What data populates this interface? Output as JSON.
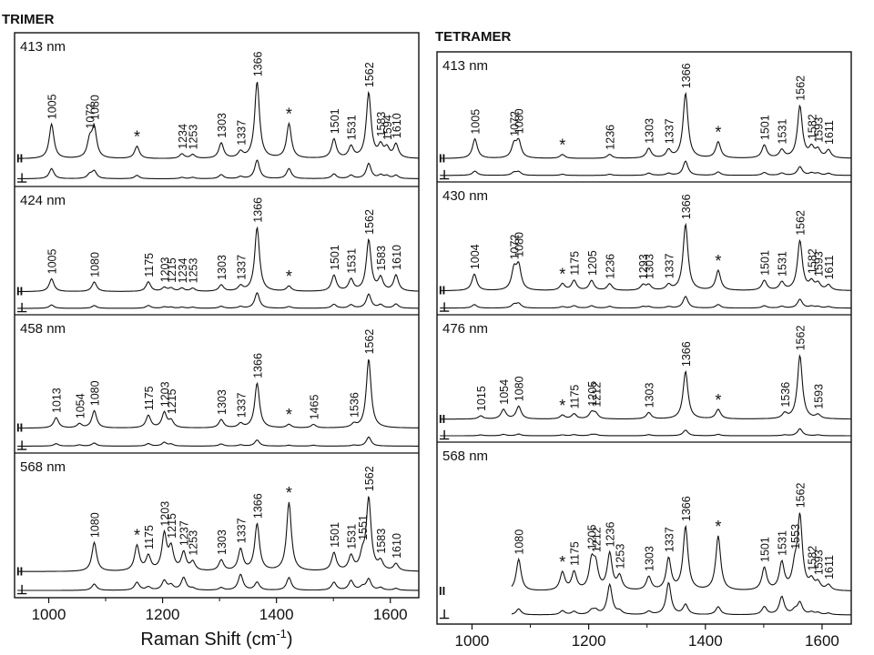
{
  "chart_data": [
    {
      "type": "line",
      "title": "TRIMER",
      "xlabel": "Raman Shift (cm-1)",
      "xlabel_main": "Raman Shift (cm",
      "xlabel_sup": "-1",
      "xlabel_close": ")",
      "xlim": [
        940,
        1650
      ],
      "xticks": [
        1000,
        1200,
        1400,
        1600
      ],
      "polarization_labels": [
        "II",
        "⊥"
      ],
      "star": "*",
      "series": [
        {
          "name": "413 nm",
          "bands": [
            {
              "x": 1005,
              "label": "1005",
              "par": 0.45,
              "perp": 0.3
            },
            {
              "x": 1072,
              "label": "1072",
              "par": 0.22,
              "perp": 0.12
            },
            {
              "x": 1080,
              "label": "1080",
              "par": 0.38,
              "perp": 0.22
            },
            {
              "x": 1155,
              "label": "*",
              "par": 0.16,
              "perp": 0.1
            },
            {
              "x": 1234,
              "label": "1234",
              "par": 0.06,
              "perp": 0.04
            },
            {
              "x": 1253,
              "label": "1253",
              "par": 0.05,
              "perp": 0.04
            },
            {
              "x": 1303,
              "label": "1303",
              "par": 0.2,
              "perp": 0.12
            },
            {
              "x": 1337,
              "label": "1337",
              "par": 0.08,
              "perp": 0.06
            },
            {
              "x": 1366,
              "label": "1366",
              "par": 1.0,
              "perp": 0.55
            },
            {
              "x": 1422,
              "label": "*",
              "par": 0.45,
              "perp": 0.3
            },
            {
              "x": 1501,
              "label": "1501",
              "par": 0.25,
              "perp": 0.14
            },
            {
              "x": 1531,
              "label": "1531",
              "par": 0.15,
              "perp": 0.1
            },
            {
              "x": 1562,
              "label": "1562",
              "par": 0.85,
              "perp": 0.45
            },
            {
              "x": 1583,
              "label": "1583",
              "par": 0.15,
              "perp": 0.1
            },
            {
              "x": 1594,
              "label": "1594",
              "par": 0.12,
              "perp": 0.08
            },
            {
              "x": 1610,
              "label": "1610",
              "par": 0.18,
              "perp": 0.1
            }
          ]
        },
        {
          "name": "424 nm",
          "bands": [
            {
              "x": 1005,
              "label": "1005",
              "par": 0.2,
              "perp": 0.12
            },
            {
              "x": 1080,
              "label": "1080",
              "par": 0.15,
              "perp": 0.1
            },
            {
              "x": 1175,
              "label": "1175",
              "par": 0.15,
              "perp": 0.1
            },
            {
              "x": 1203,
              "label": "1203",
              "par": 0.06,
              "perp": 0.05
            },
            {
              "x": 1215,
              "label": "1215",
              "par": 0.05,
              "perp": 0.04
            },
            {
              "x": 1234,
              "label": "1234",
              "par": 0.05,
              "perp": 0.04
            },
            {
              "x": 1253,
              "label": "1253",
              "par": 0.05,
              "perp": 0.04
            },
            {
              "x": 1303,
              "label": "1303",
              "par": 0.1,
              "perp": 0.07
            },
            {
              "x": 1337,
              "label": "1337",
              "par": 0.08,
              "perp": 0.06
            },
            {
              "x": 1366,
              "label": "1366",
              "par": 1.0,
              "perp": 0.55
            },
            {
              "x": 1422,
              "label": "*",
              "par": 0.08,
              "perp": 0.06
            },
            {
              "x": 1501,
              "label": "1501",
              "par": 0.25,
              "perp": 0.14
            },
            {
              "x": 1531,
              "label": "1531",
              "par": 0.18,
              "perp": 0.12
            },
            {
              "x": 1562,
              "label": "1562",
              "par": 0.8,
              "perp": 0.5
            },
            {
              "x": 1583,
              "label": "1583",
              "par": 0.2,
              "perp": 0.12
            },
            {
              "x": 1610,
              "label": "1610",
              "par": 0.25,
              "perp": 0.15
            }
          ]
        },
        {
          "name": "458 nm",
          "bands": [
            {
              "x": 1013,
              "label": "1013",
              "par": 0.15,
              "perp": 0.08
            },
            {
              "x": 1054,
              "label": "1054",
              "par": 0.06,
              "perp": 0.04
            },
            {
              "x": 1080,
              "label": "1080",
              "par": 0.25,
              "perp": 0.1
            },
            {
              "x": 1175,
              "label": "1175",
              "par": 0.18,
              "perp": 0.08
            },
            {
              "x": 1203,
              "label": "1203",
              "par": 0.22,
              "perp": 0.12
            },
            {
              "x": 1215,
              "label": "1215",
              "par": 0.1,
              "perp": 0.06
            },
            {
              "x": 1303,
              "label": "1303",
              "par": 0.12,
              "perp": 0.07
            },
            {
              "x": 1337,
              "label": "1337",
              "par": 0.06,
              "perp": 0.04
            },
            {
              "x": 1366,
              "label": "1366",
              "par": 0.65,
              "perp": 0.2
            },
            {
              "x": 1422,
              "label": "*",
              "par": 0.05,
              "perp": 0.03
            },
            {
              "x": 1465,
              "label": "1465",
              "par": 0.05,
              "perp": 0.03
            },
            {
              "x": 1536,
              "label": "1536",
              "par": 0.05,
              "perp": 0.03
            },
            {
              "x": 1562,
              "label": "1562",
              "par": 1.0,
              "perp": 0.3
            }
          ]
        },
        {
          "name": "568 nm",
          "bands": [
            {
              "x": 1080,
              "label": "1080",
              "par": 0.4,
              "perp": 0.2
            },
            {
              "x": 1155,
              "label": "*",
              "par": 0.35,
              "perp": 0.25
            },
            {
              "x": 1175,
              "label": "1175",
              "par": 0.2,
              "perp": 0.1
            },
            {
              "x": 1203,
              "label": "1203",
              "par": 0.5,
              "perp": 0.3
            },
            {
              "x": 1215,
              "label": "1215",
              "par": 0.3,
              "perp": 0.15
            },
            {
              "x": 1237,
              "label": "1237",
              "par": 0.25,
              "perp": 0.4
            },
            {
              "x": 1253,
              "label": "1253",
              "par": 0.12,
              "perp": 0.06
            },
            {
              "x": 1303,
              "label": "1303",
              "par": 0.15,
              "perp": 0.08
            },
            {
              "x": 1337,
              "label": "1337",
              "par": 0.3,
              "perp": 0.5
            },
            {
              "x": 1366,
              "label": "1366",
              "par": 0.65,
              "perp": 0.25
            },
            {
              "x": 1422,
              "label": "*",
              "par": 0.95,
              "perp": 0.4
            },
            {
              "x": 1501,
              "label": "1501",
              "par": 0.25,
              "perp": 0.25
            },
            {
              "x": 1531,
              "label": "1531",
              "par": 0.2,
              "perp": 0.3
            },
            {
              "x": 1551,
              "label": "1551",
              "par": 0.18,
              "perp": 0.1
            },
            {
              "x": 1562,
              "label": "1562",
              "par": 1.0,
              "perp": 0.35
            },
            {
              "x": 1583,
              "label": "1583",
              "par": 0.12,
              "perp": 0.08
            },
            {
              "x": 1610,
              "label": "1610",
              "par": 0.1,
              "perp": 0.06
            }
          ]
        }
      ]
    },
    {
      "type": "line",
      "title": "TETRAMER",
      "xlabel": "Raman Shift (cm-1)",
      "xlabel_main": "Raman Shift (cm",
      "xlabel_sup": "-1",
      "xlabel_close": ")",
      "xlim": [
        940,
        1650
      ],
      "xticks": [
        1000,
        1200,
        1400,
        1600
      ],
      "polarization_labels": [
        "II",
        "⊥"
      ],
      "star": "*",
      "series": [
        {
          "name": "413 nm",
          "bands": [
            {
              "x": 1005,
              "label": "1005",
              "par": 0.3,
              "perp": 0.15
            },
            {
              "x": 1072,
              "label": "1072",
              "par": 0.2,
              "perp": 0.1
            },
            {
              "x": 1080,
              "label": "1080",
              "par": 0.25,
              "perp": 0.12
            },
            {
              "x": 1155,
              "label": "*",
              "par": 0.06,
              "perp": 0.04
            },
            {
              "x": 1236,
              "label": "1236",
              "par": 0.06,
              "perp": 0.04
            },
            {
              "x": 1303,
              "label": "1303",
              "par": 0.15,
              "perp": 0.08
            },
            {
              "x": 1337,
              "label": "1337",
              "par": 0.12,
              "perp": 0.07
            },
            {
              "x": 1366,
              "label": "1366",
              "par": 1.0,
              "perp": 0.5
            },
            {
              "x": 1422,
              "label": "*",
              "par": 0.25,
              "perp": 0.12
            },
            {
              "x": 1501,
              "label": "1501",
              "par": 0.2,
              "perp": 0.1
            },
            {
              "x": 1531,
              "label": "1531",
              "par": 0.12,
              "perp": 0.08
            },
            {
              "x": 1562,
              "label": "1562",
              "par": 0.8,
              "perp": 0.3
            },
            {
              "x": 1582,
              "label": "1582",
              "par": 0.15,
              "perp": 0.08
            },
            {
              "x": 1593,
              "label": "1593",
              "par": 0.12,
              "perp": 0.07
            },
            {
              "x": 1611,
              "label": "1611",
              "par": 0.12,
              "perp": 0.07
            }
          ]
        },
        {
          "name": "430 nm",
          "bands": [
            {
              "x": 1004,
              "label": "1004",
              "par": 0.25,
              "perp": 0.12
            },
            {
              "x": 1072,
              "label": "1072",
              "par": 0.3,
              "perp": 0.12
            },
            {
              "x": 1080,
              "label": "1080",
              "par": 0.35,
              "perp": 0.15
            },
            {
              "x": 1155,
              "label": "*",
              "par": 0.1,
              "perp": 0.05
            },
            {
              "x": 1175,
              "label": "1175",
              "par": 0.15,
              "perp": 0.08
            },
            {
              "x": 1205,
              "label": "1205",
              "par": 0.15,
              "perp": 0.08
            },
            {
              "x": 1236,
              "label": "1236",
              "par": 0.1,
              "perp": 0.06
            },
            {
              "x": 1293,
              "label": "1293",
              "par": 0.08,
              "perp": 0.05
            },
            {
              "x": 1303,
              "label": "1303",
              "par": 0.08,
              "perp": 0.05
            },
            {
              "x": 1337,
              "label": "1337",
              "par": 0.08,
              "perp": 0.05
            },
            {
              "x": 1366,
              "label": "1366",
              "par": 1.0,
              "perp": 0.4
            },
            {
              "x": 1422,
              "label": "*",
              "par": 0.3,
              "perp": 0.12
            },
            {
              "x": 1501,
              "label": "1501",
              "par": 0.15,
              "perp": 0.08
            },
            {
              "x": 1531,
              "label": "1531",
              "par": 0.12,
              "perp": 0.06
            },
            {
              "x": 1562,
              "label": "1562",
              "par": 0.75,
              "perp": 0.3
            },
            {
              "x": 1582,
              "label": "1582",
              "par": 0.12,
              "perp": 0.06
            },
            {
              "x": 1593,
              "label": "1593",
              "par": 0.1,
              "perp": 0.05
            },
            {
              "x": 1611,
              "label": "1611",
              "par": 0.08,
              "perp": 0.05
            }
          ]
        },
        {
          "name": "476 nm",
          "bands": [
            {
              "x": 1015,
              "label": "1015",
              "par": 0.05,
              "perp": 0.03
            },
            {
              "x": 1054,
              "label": "1054",
              "par": 0.15,
              "perp": 0.05
            },
            {
              "x": 1080,
              "label": "1080",
              "par": 0.2,
              "perp": 0.06
            },
            {
              "x": 1155,
              "label": "*",
              "par": 0.06,
              "perp": 0.03
            },
            {
              "x": 1175,
              "label": "1175",
              "par": 0.08,
              "perp": 0.04
            },
            {
              "x": 1205,
              "label": "1205",
              "par": 0.1,
              "perp": 0.04
            },
            {
              "x": 1212,
              "label": "1212",
              "par": 0.08,
              "perp": 0.04
            },
            {
              "x": 1303,
              "label": "1303",
              "par": 0.1,
              "perp": 0.04
            },
            {
              "x": 1366,
              "label": "1366",
              "par": 0.75,
              "perp": 0.2
            },
            {
              "x": 1422,
              "label": "*",
              "par": 0.15,
              "perp": 0.05
            },
            {
              "x": 1536,
              "label": "1536",
              "par": 0.08,
              "perp": 0.03
            },
            {
              "x": 1562,
              "label": "1562",
              "par": 1.0,
              "perp": 0.25
            },
            {
              "x": 1593,
              "label": "1593",
              "par": 0.06,
              "perp": 0.03
            }
          ]
        },
        {
          "name": "568 nm",
          "xstart": 1068,
          "bands": [
            {
              "x": 1080,
              "label": "1080",
              "par": 0.35,
              "perp": 0.15
            },
            {
              "x": 1155,
              "label": "*",
              "par": 0.2,
              "perp": 0.1
            },
            {
              "x": 1175,
              "label": "1175",
              "par": 0.2,
              "perp": 0.08
            },
            {
              "x": 1205,
              "label": "1205",
              "par": 0.3,
              "perp": 0.1
            },
            {
              "x": 1212,
              "label": "1212",
              "par": 0.25,
              "perp": 0.1
            },
            {
              "x": 1236,
              "label": "1236",
              "par": 0.4,
              "perp": 0.75
            },
            {
              "x": 1253,
              "label": "1253",
              "par": 0.15,
              "perp": 0.08
            },
            {
              "x": 1303,
              "label": "1303",
              "par": 0.15,
              "perp": 0.08
            },
            {
              "x": 1337,
              "label": "1337",
              "par": 0.35,
              "perp": 0.8
            },
            {
              "x": 1366,
              "label": "1366",
              "par": 0.7,
              "perp": 0.25
            },
            {
              "x": 1422,
              "label": "*",
              "par": 0.6,
              "perp": 0.2
            },
            {
              "x": 1501,
              "label": "1501",
              "par": 0.25,
              "perp": 0.2
            },
            {
              "x": 1531,
              "label": "1531",
              "par": 0.3,
              "perp": 0.45
            },
            {
              "x": 1553,
              "label": "1553",
              "par": 0.2,
              "perp": 0.1
            },
            {
              "x": 1562,
              "label": "1562",
              "par": 0.8,
              "perp": 0.3
            },
            {
              "x": 1582,
              "label": "1582",
              "par": 0.1,
              "perp": 0.06
            },
            {
              "x": 1593,
              "label": "1593",
              "par": 0.08,
              "perp": 0.05
            },
            {
              "x": 1611,
              "label": "1611",
              "par": 0.06,
              "perp": 0.04
            }
          ]
        }
      ]
    }
  ]
}
